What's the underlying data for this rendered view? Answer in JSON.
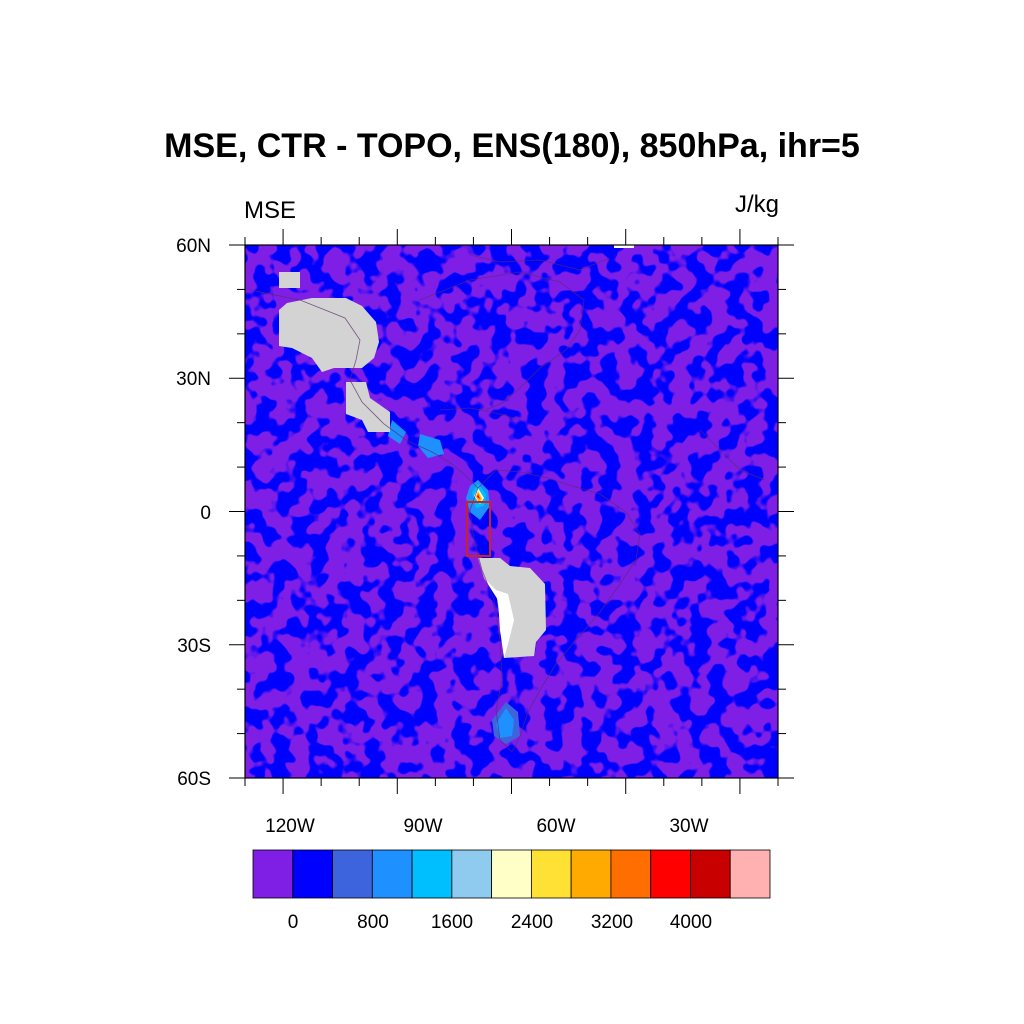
{
  "title": "MSE, CTR - TOPO, ENS(180), 850hPa, ihr=5",
  "left_string": "MSE",
  "right_string": "J/kg",
  "chart_data": {
    "type": "heatmap",
    "variable": "MSE",
    "units": "J/kg",
    "lon_range": [
      -130,
      10
    ],
    "lat_range": [
      -60,
      60
    ],
    "y_ticks": [
      {
        "value": 60,
        "label": "60N"
      },
      {
        "value": 30,
        "label": "30N"
      },
      {
        "value": 0,
        "label": "0"
      },
      {
        "value": -30,
        "label": "30S"
      },
      {
        "value": -60,
        "label": "60S"
      }
    ],
    "x_ticks": [
      {
        "value": -120,
        "label": "120W"
      },
      {
        "value": -90,
        "label": "90W"
      },
      {
        "value": -60,
        "label": "60W"
      },
      {
        "value": -30,
        "label": "30W"
      }
    ],
    "colorbar": {
      "colors": [
        "#7f1fe6",
        "#0000ff",
        "#3d64dc",
        "#1e90ff",
        "#00bfff",
        "#8ecbef",
        "#ffffc8",
        "#ffe135",
        "#ffaa00",
        "#ff6e00",
        "#ff0000",
        "#c80000",
        "#ffb0b0"
      ],
      "levels": [
        0,
        400,
        800,
        1200,
        1600,
        2000,
        2400,
        2800,
        3200,
        3600,
        4000,
        4400
      ],
      "labels": [
        {
          "value": 0,
          "label": "0"
        },
        {
          "value": 800,
          "label": "800"
        },
        {
          "value": 1600,
          "label": "1600"
        },
        {
          "value": 2400,
          "label": "2400"
        },
        {
          "value": 3200,
          "label": "3200"
        },
        {
          "value": 4000,
          "label": "4000"
        }
      ]
    },
    "masked_color": "#d3d3d3",
    "dominant_values": "-400 to 400",
    "max_region": {
      "lon": -77,
      "lat": 4,
      "value": 4000
    },
    "box": {
      "lon_min": -81,
      "lon_max": -76,
      "lat_min": -10,
      "lat_max": 2,
      "color": "#cc2222"
    }
  }
}
